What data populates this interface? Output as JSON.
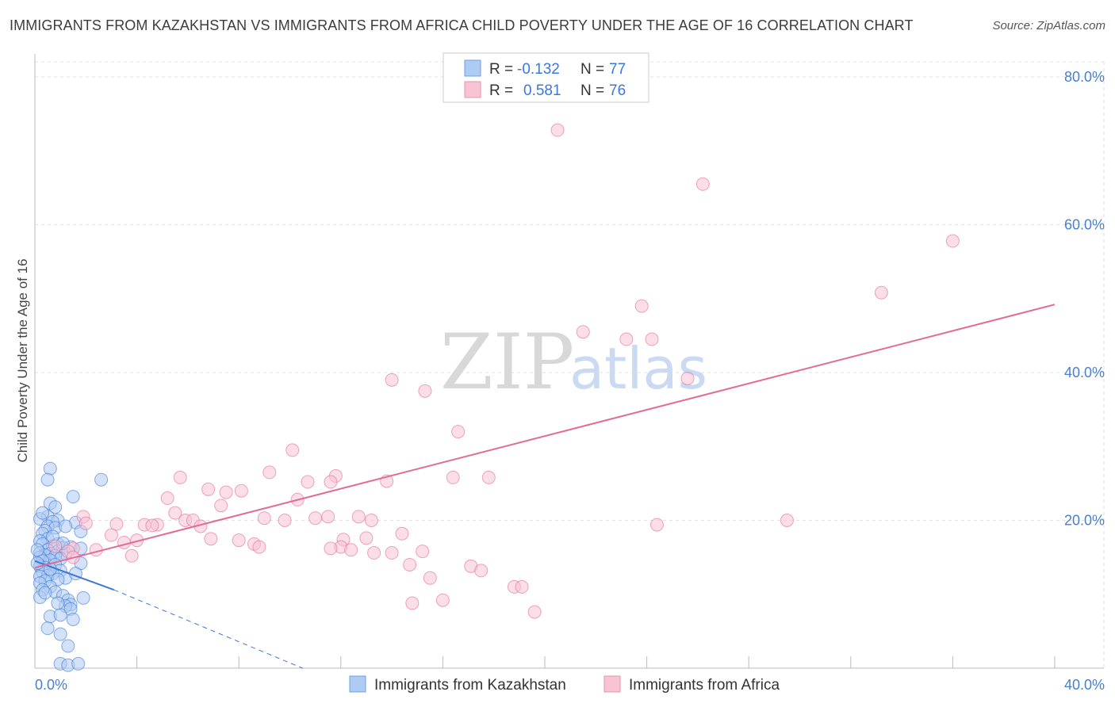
{
  "header": {
    "title": "IMMIGRANTS FROM KAZAKHSTAN VS IMMIGRANTS FROM AFRICA CHILD POVERTY UNDER THE AGE OF 16 CORRELATION CHART",
    "source": "Source: ZipAtlas.com"
  },
  "watermark": {
    "zip": "ZIP",
    "atlas": "atlas"
  },
  "legend": {
    "rows": [
      {
        "r_label": "R =",
        "r_value": "-0.132",
        "n_label": "N =",
        "n_value": "77",
        "fill": "#aecbf3",
        "stroke": "#6f9fe0"
      },
      {
        "r_label": "R =",
        "r_value": "0.581",
        "n_label": "N =",
        "n_value": "76",
        "fill": "#f8c3d3",
        "stroke": "#e891ad"
      }
    ]
  },
  "chart_data": {
    "type": "scatter",
    "title": "IMMIGRANTS FROM KAZAKHSTAN VS IMMIGRANTS FROM AFRICA CHILD POVERTY UNDER THE AGE OF 16 CORRELATION CHART",
    "xlabel": "",
    "ylabel": "Child Poverty Under the Age of 16",
    "xlim": [
      0,
      40
    ],
    "ylim": [
      0,
      80
    ],
    "x_tick_labels": [
      "0.0%",
      "40.0%"
    ],
    "y_ticks": [
      20,
      40,
      60,
      80
    ],
    "y_tick_labels": [
      "20.0%",
      "40.0%",
      "60.0%",
      "80.0%"
    ],
    "grid": true,
    "legend_position": "top-center",
    "series": [
      {
        "name": "Immigrants from Kazakhstan",
        "color": "#3b78d8",
        "fill": "#aecbf3",
        "trend": {
          "x0": 0.0,
          "y0": 14.5,
          "x1": 3.1,
          "y1": 10.6,
          "dashed_to_x": 10.5,
          "dashed_to_y": 0.0
        },
        "points": [
          [
            0.6,
            27.0
          ],
          [
            0.5,
            25.5
          ],
          [
            1.5,
            23.2
          ],
          [
            0.6,
            22.3
          ],
          [
            0.8,
            21.8
          ],
          [
            0.5,
            20.5
          ],
          [
            0.2,
            20.2
          ],
          [
            0.9,
            20.0
          ],
          [
            0.7,
            19.8
          ],
          [
            1.6,
            19.7
          ],
          [
            0.5,
            19.2
          ],
          [
            0.8,
            19.0
          ],
          [
            0.4,
            18.6
          ],
          [
            1.8,
            18.5
          ],
          [
            0.3,
            18.2
          ],
          [
            0.5,
            17.5
          ],
          [
            0.2,
            17.2
          ],
          [
            0.9,
            16.8
          ],
          [
            0.3,
            16.8
          ],
          [
            0.7,
            16.5
          ],
          [
            1.4,
            16.4
          ],
          [
            1.1,
            16.3
          ],
          [
            1.8,
            16.2
          ],
          [
            0.5,
            16.0
          ],
          [
            0.9,
            15.8
          ],
          [
            0.2,
            15.6
          ],
          [
            0.6,
            15.5
          ],
          [
            1.2,
            15.5
          ],
          [
            0.4,
            15.3
          ],
          [
            0.8,
            15.2
          ],
          [
            0.2,
            15.0
          ],
          [
            1.0,
            14.8
          ],
          [
            0.6,
            14.6
          ],
          [
            0.3,
            14.5
          ],
          [
            1.8,
            14.2
          ],
          [
            0.8,
            14.0
          ],
          [
            0.2,
            13.8
          ],
          [
            0.4,
            13.6
          ],
          [
            1.0,
            13.2
          ],
          [
            0.3,
            13.0
          ],
          [
            0.7,
            12.8
          ],
          [
            0.5,
            12.5
          ],
          [
            0.2,
            12.4
          ],
          [
            1.2,
            12.2
          ],
          [
            0.9,
            12.0
          ],
          [
            0.4,
            11.8
          ],
          [
            0.2,
            11.5
          ],
          [
            0.6,
            11.0
          ],
          [
            0.3,
            10.6
          ],
          [
            0.8,
            10.3
          ],
          [
            1.1,
            9.8
          ],
          [
            0.2,
            9.6
          ],
          [
            1.3,
            9.2
          ],
          [
            1.9,
            9.5
          ],
          [
            1.4,
            8.6
          ],
          [
            1.2,
            8.4
          ],
          [
            1.4,
            8.0
          ],
          [
            0.6,
            7.0
          ],
          [
            1.0,
            7.2
          ],
          [
            1.5,
            6.6
          ],
          [
            0.5,
            5.4
          ],
          [
            1.0,
            4.6
          ],
          [
            1.3,
            3.0
          ],
          [
            1.0,
            0.6
          ],
          [
            1.3,
            0.4
          ],
          [
            1.7,
            0.6
          ],
          [
            2.6,
            25.5
          ],
          [
            0.1,
            16.0
          ],
          [
            0.1,
            14.2
          ],
          [
            0.3,
            21.0
          ],
          [
            1.2,
            19.2
          ],
          [
            0.7,
            17.8
          ],
          [
            1.6,
            12.8
          ],
          [
            0.4,
            10.2
          ],
          [
            0.9,
            8.8
          ],
          [
            1.1,
            16.9
          ],
          [
            0.6,
            13.4
          ]
        ]
      },
      {
        "name": "Immigrants from Africa",
        "color": "#e36a97",
        "fill": "#f8c3d3",
        "trend": {
          "x0": 0.0,
          "y0": 13.6,
          "x1": 40.0,
          "y1": 49.2
        },
        "points": [
          [
            20.5,
            72.8
          ],
          [
            26.2,
            65.5
          ],
          [
            36.0,
            57.8
          ],
          [
            33.2,
            50.8
          ],
          [
            23.8,
            49.0
          ],
          [
            21.5,
            45.5
          ],
          [
            23.2,
            44.5
          ],
          [
            24.2,
            44.5
          ],
          [
            14.0,
            39.0
          ],
          [
            15.3,
            37.5
          ],
          [
            25.6,
            39.2
          ],
          [
            16.6,
            32.0
          ],
          [
            10.1,
            29.5
          ],
          [
            9.2,
            26.5
          ],
          [
            11.8,
            26.0
          ],
          [
            13.8,
            25.3
          ],
          [
            5.7,
            25.8
          ],
          [
            16.4,
            25.8
          ],
          [
            17.8,
            25.8
          ],
          [
            10.7,
            25.2
          ],
          [
            11.6,
            25.2
          ],
          [
            6.8,
            24.2
          ],
          [
            8.1,
            24.0
          ],
          [
            7.5,
            23.8
          ],
          [
            10.3,
            22.8
          ],
          [
            5.2,
            23.0
          ],
          [
            7.3,
            22.0
          ],
          [
            5.5,
            21.0
          ],
          [
            9.0,
            20.3
          ],
          [
            11.0,
            20.3
          ],
          [
            11.5,
            20.5
          ],
          [
            12.7,
            20.5
          ],
          [
            14.4,
            18.2
          ],
          [
            9.8,
            20.0
          ],
          [
            5.9,
            20.0
          ],
          [
            6.2,
            20.0
          ],
          [
            13.2,
            20.0
          ],
          [
            3.2,
            19.5
          ],
          [
            4.3,
            19.4
          ],
          [
            4.8,
            19.4
          ],
          [
            4.6,
            19.3
          ],
          [
            6.5,
            19.2
          ],
          [
            24.4,
            19.4
          ],
          [
            29.5,
            20.0
          ],
          [
            1.9,
            20.5
          ],
          [
            2.0,
            19.6
          ],
          [
            3.0,
            18.0
          ],
          [
            4.0,
            17.3
          ],
          [
            6.9,
            17.5
          ],
          [
            3.5,
            17.0
          ],
          [
            8.0,
            17.3
          ],
          [
            12.1,
            17.4
          ],
          [
            13.0,
            17.6
          ],
          [
            8.6,
            16.8
          ],
          [
            8.8,
            16.4
          ],
          [
            12.0,
            16.4
          ],
          [
            11.6,
            16.2
          ],
          [
            2.4,
            16.0
          ],
          [
            1.5,
            16.2
          ],
          [
            1.3,
            15.8
          ],
          [
            12.4,
            16.0
          ],
          [
            13.3,
            15.6
          ],
          [
            14.0,
            15.6
          ],
          [
            15.2,
            15.8
          ],
          [
            3.8,
            15.2
          ],
          [
            1.5,
            15.0
          ],
          [
            14.7,
            14.0
          ],
          [
            17.1,
            13.8
          ],
          [
            15.5,
            12.2
          ],
          [
            18.8,
            11.0
          ],
          [
            17.5,
            13.2
          ],
          [
            16.0,
            9.2
          ],
          [
            19.1,
            11.0
          ],
          [
            14.8,
            8.8
          ],
          [
            19.6,
            7.6
          ],
          [
            0.8,
            16.5
          ]
        ]
      }
    ]
  },
  "bottom_legend": {
    "items": [
      {
        "label": "Immigrants from Kazakhstan",
        "fill": "#aecbf3",
        "stroke": "#6f9fe0"
      },
      {
        "label": "Immigrants from Africa",
        "fill": "#f8c3d3",
        "stroke": "#e891ad"
      }
    ]
  }
}
